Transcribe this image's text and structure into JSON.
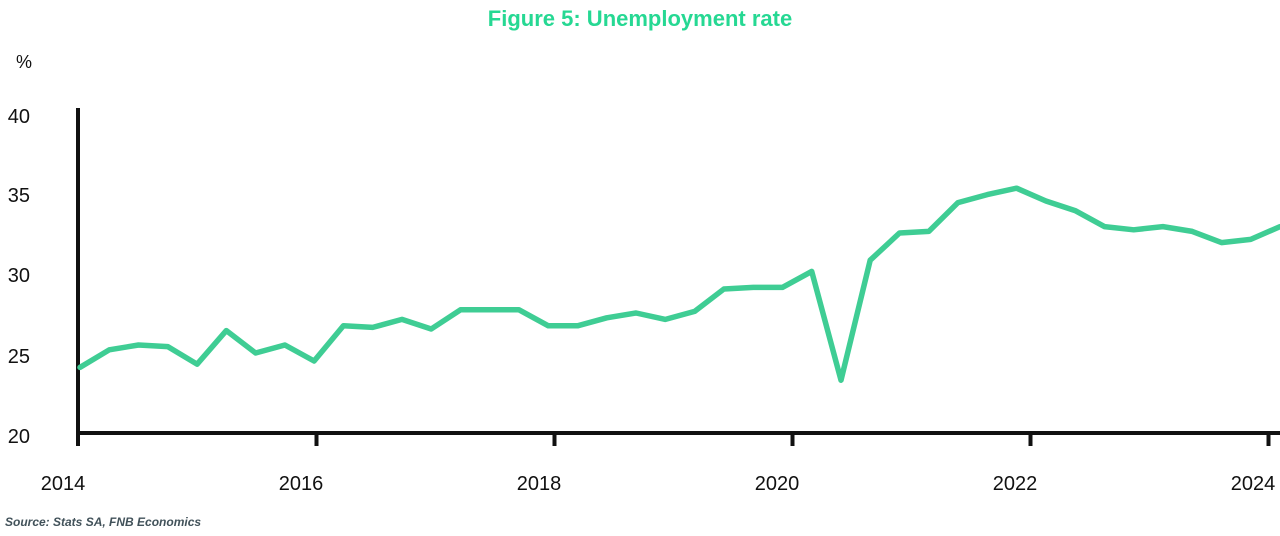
{
  "source": "Source: Stats SA, FNB Economics",
  "colors": {
    "title": "#26d893",
    "line": "#3fcd94",
    "axis": "#111111",
    "tick_text": "#111111",
    "source_text": "#42525a",
    "background": "#ffffff"
  },
  "chart_data": {
    "type": "line",
    "title": "Figure 5: Unemployment rate",
    "xlabel": "",
    "ylabel": "%",
    "ylim": [
      20,
      40
    ],
    "y_ticks": [
      "40",
      "35",
      "30",
      "25",
      "20"
    ],
    "x_ticks": [
      "2014",
      "2016",
      "2018",
      "2020",
      "2022",
      "2024"
    ],
    "grid": false,
    "legend_position": "none",
    "frequency": "quarterly",
    "start_period": "2013Q4",
    "end_period": "2024Q1",
    "series": [
      {
        "name": "Unemployment rate (%)",
        "values": [
          24.1,
          25.2,
          25.5,
          25.4,
          24.3,
          26.4,
          25.0,
          25.5,
          24.5,
          26.7,
          26.6,
          27.1,
          26.5,
          27.7,
          27.7,
          27.7,
          26.7,
          26.7,
          27.2,
          27.5,
          27.1,
          27.6,
          29.0,
          29.1,
          29.1,
          30.1,
          23.3,
          30.8,
          32.5,
          32.6,
          34.4,
          34.9,
          35.3,
          34.5,
          33.9,
          32.9,
          32.7,
          32.9,
          32.6,
          31.9,
          32.1,
          32.9
        ]
      }
    ]
  }
}
